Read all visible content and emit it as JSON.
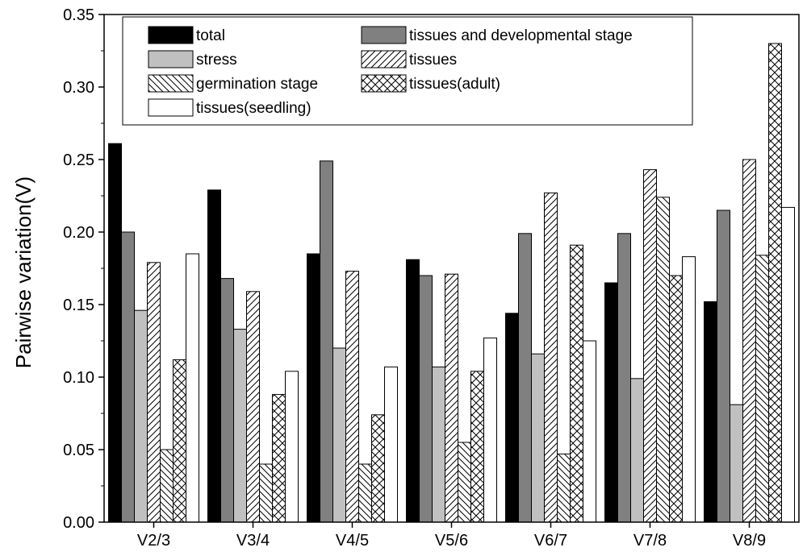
{
  "chart_data": {
    "type": "bar",
    "title": "",
    "xlabel": "",
    "ylabel": "Pairwise variation(V)",
    "ylim": [
      0,
      0.35
    ],
    "yticks": [
      "0.00",
      "0.05",
      "0.10",
      "0.15",
      "0.20",
      "0.25",
      "0.30",
      "0.35"
    ],
    "categories": [
      "V2/3",
      "V3/4",
      "V4/5",
      "V5/6",
      "V6/7",
      "V7/8",
      "V8/9"
    ],
    "legend_position": "top",
    "series": [
      {
        "name": "total",
        "pattern": "solid",
        "fill": "#000000",
        "values": [
          0.261,
          0.229,
          0.185,
          0.181,
          0.144,
          0.165,
          0.152
        ]
      },
      {
        "name": "tissues and developmental stage",
        "pattern": "solid",
        "fill": "#808080",
        "values": [
          0.2,
          0.168,
          0.249,
          0.17,
          0.199,
          0.199,
          0.215
        ]
      },
      {
        "name": "stress",
        "pattern": "solid",
        "fill": "#c0c0c0",
        "values": [
          0.146,
          0.133,
          0.12,
          0.107,
          0.116,
          0.099,
          0.081
        ]
      },
      {
        "name": "tissues",
        "pattern": "diag-right",
        "fill": "#ffffff",
        "values": [
          0.179,
          0.159,
          0.173,
          0.171,
          0.227,
          0.243,
          0.25
        ]
      },
      {
        "name": "germination stage",
        "pattern": "diag-left",
        "fill": "#ffffff",
        "values": [
          0.05,
          0.04,
          0.04,
          0.055,
          0.047,
          0.224,
          0.184
        ]
      },
      {
        "name": "tissues(adult)",
        "pattern": "cross",
        "fill": "#ffffff",
        "values": [
          0.112,
          0.088,
          0.074,
          0.104,
          0.191,
          0.17,
          0.33
        ]
      },
      {
        "name": "tissues(seedling)",
        "pattern": "solid",
        "fill": "#ffffff",
        "values": [
          0.185,
          0.104,
          0.107,
          0.127,
          0.125,
          0.183,
          0.217
        ]
      }
    ]
  }
}
